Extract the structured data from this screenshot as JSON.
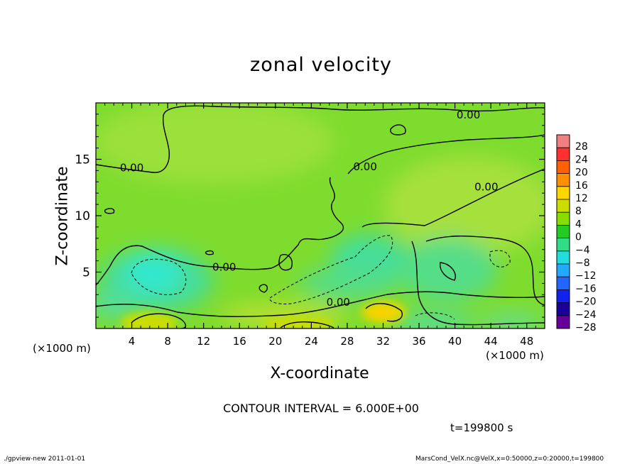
{
  "chart_data": {
    "type": "heatmap",
    "title": "zonal velocity",
    "xlabel": "X-coordinate",
    "ylabel": "Z-coordinate",
    "x_unit_label": "(×1000 m)",
    "xlim": [
      0,
      50
    ],
    "ylim": [
      0,
      20
    ],
    "x_ticks": [
      4,
      8,
      12,
      16,
      20,
      24,
      28,
      32,
      36,
      40,
      44,
      48
    ],
    "y_ticks": [
      5,
      10,
      15
    ],
    "colorbar": {
      "levels": [
        28,
        24,
        20,
        16,
        12,
        8,
        4,
        0,
        -4,
        -8,
        -12,
        -16,
        -20,
        -24,
        -28
      ],
      "colors": [
        "#f08080",
        "#ff3030",
        "#ff6000",
        "#ff9000",
        "#ffd700",
        "#ccdd00",
        "#88dd00",
        "#22cc22",
        "#33dd88",
        "#22dddd",
        "#22aaff",
        "#2266ff",
        "#1122ee",
        "#1a0099",
        "#660099"
      ]
    },
    "contour_labels": [
      {
        "text": "0.00",
        "x": 41.5,
        "z": 19.0
      },
      {
        "text": "0.00",
        "x": 4.0,
        "z": 14.3
      },
      {
        "text": "0.00",
        "x": 30.0,
        "z": 14.4
      },
      {
        "text": "0.00",
        "x": 43.5,
        "z": 12.6
      },
      {
        "text": "0.00",
        "x": 14.3,
        "z": 5.5
      },
      {
        "text": "0.00",
        "x": 27.0,
        "z": 2.4
      }
    ],
    "contour_interval": "CONTOUR INTERVAL = 6.000E+00",
    "time": "t=199800 s"
  },
  "footer": {
    "left": "./gpview-new   2011-01-01",
    "right": "MarsCond_VelX.nc@VelX,x=0:50000,z=0:20000,t=199800"
  }
}
